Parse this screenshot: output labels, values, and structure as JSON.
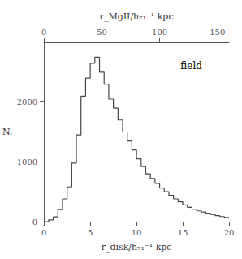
{
  "chart_data": {
    "type": "histogram",
    "bins": [
      0,
      0.5,
      1.0,
      1.5,
      2.0,
      2.5,
      3.0,
      3.5,
      4.0,
      4.5,
      5.0,
      5.5,
      6.0,
      6.5,
      7.0,
      7.5,
      8.0,
      8.5,
      9.0,
      9.5,
      10.0,
      10.5,
      11.0,
      11.5,
      12.0,
      12.5,
      13.0,
      13.5,
      14.0,
      14.5,
      15.0,
      15.5,
      16.0,
      16.5,
      17.0,
      17.5,
      18.0,
      18.5,
      19.0,
      19.5,
      20.0
    ],
    "values": [
      0,
      30,
      80,
      200,
      380,
      580,
      980,
      1450,
      2100,
      2400,
      2650,
      2750,
      2500,
      2300,
      2050,
      1900,
      1700,
      1500,
      1350,
      1200,
      1050,
      920,
      800,
      720,
      640,
      560,
      500,
      440,
      380,
      330,
      280,
      240,
      210,
      180,
      160,
      140,
      120,
      100,
      85,
      70
    ],
    "color": "#444444",
    "xlabel": "r_disk/h₇₁⁻¹ kpc",
    "x2label": "r_MgII/h₇₁⁻¹ kpc",
    "ylabel": "Nᵢ",
    "xlim": [
      0,
      20
    ],
    "xticks": [
      0,
      5,
      10,
      15,
      20
    ],
    "x2lim": [
      0,
      160
    ],
    "x2ticks": [
      0,
      50,
      100,
      150
    ],
    "ylim": [
      0,
      3000
    ],
    "yticks": [
      0,
      1000,
      2000
    ],
    "annotations": [
      "field"
    ],
    "grid": false
  }
}
